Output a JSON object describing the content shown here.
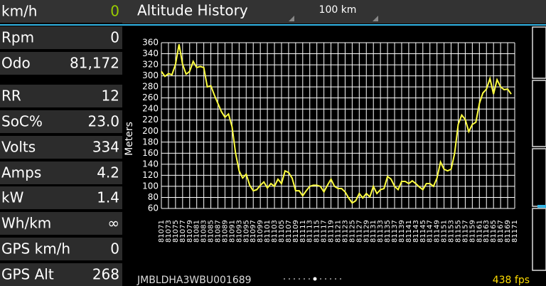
{
  "header": {
    "title": "Altitude History",
    "range": "100 km"
  },
  "gauges": [
    {
      "label": "km/h",
      "value": "0"
    },
    {
      "label": "Rpm",
      "value": "0"
    },
    {
      "label": "Odo",
      "value": "81,172"
    },
    {
      "label": "RR",
      "value": "12"
    },
    {
      "label": "SoC%",
      "value": "23.0"
    },
    {
      "label": "Volts",
      "value": "334"
    },
    {
      "label": "Amps",
      "value": "4.2"
    },
    {
      "label": "kW",
      "value": "1.4"
    },
    {
      "label": "Wh/km",
      "value": "∞"
    },
    {
      "label": "GPS km/h",
      "value": "0"
    },
    {
      "label": "GPS Alt",
      "value": "268"
    }
  ],
  "footer": {
    "vin": "JMBLDHA3WBU001689",
    "fps": "438 fps"
  },
  "chart_data": {
    "type": "line",
    "y_label": "Meters",
    "grid": true,
    "x": [
      81071,
      81072,
      81073,
      81074,
      81075,
      81076,
      81077,
      81078,
      81079,
      81080,
      81081,
      81082,
      81083,
      81084,
      81085,
      81086,
      81087,
      81088,
      81089,
      81090,
      81091,
      81092,
      81093,
      81094,
      81095,
      81096,
      81097,
      81098,
      81099,
      81100,
      81101,
      81102,
      81103,
      81104,
      81105,
      81106,
      81107,
      81108,
      81109,
      81110,
      81111,
      81112,
      81113,
      81114,
      81115,
      81116,
      81117,
      81118,
      81119,
      81120,
      81121,
      81122,
      81123,
      81124,
      81125,
      81126,
      81127,
      81128,
      81129,
      81130,
      81131,
      81132,
      81133,
      81134,
      81135,
      81136,
      81137,
      81138,
      81139,
      81140,
      81141,
      81142,
      81143,
      81144,
      81145,
      81146,
      81147,
      81148,
      81149,
      81150,
      81151,
      81152,
      81153,
      81154,
      81155,
      81156,
      81157,
      81158,
      81159,
      81160,
      81161,
      81162,
      81163,
      81164,
      81165,
      81166,
      81167,
      81168,
      81169,
      81170
    ],
    "series": [
      {
        "name": "Altitude",
        "color": "#ffff40",
        "values": [
          308,
          299,
          304,
          302,
          321,
          357,
          321,
          303,
          308,
          326,
          315,
          317,
          315,
          280,
          282,
          265,
          250,
          235,
          225,
          231,
          208,
          160,
          128,
          115,
          122,
          102,
          92,
          94,
          102,
          108,
          97,
          105,
          100,
          113,
          105,
          128,
          125,
          115,
          92,
          92,
          83,
          92,
          100,
          102,
          102,
          100,
          90,
          102,
          113,
          100,
          96,
          96,
          90,
          79,
          70,
          74,
          87,
          79,
          87,
          81,
          100,
          87,
          94,
          96,
          118,
          113,
          100,
          94,
          109,
          109,
          105,
          110,
          105,
          99,
          94,
          105,
          105,
          100,
          115,
          144,
          131,
          128,
          131,
          160,
          212,
          229,
          221,
          199,
          212,
          216,
          250,
          269,
          276,
          295,
          267,
          293,
          280,
          275,
          276,
          267
        ]
      }
    ],
    "xlim": [
      81071,
      81171
    ],
    "xticks": [
      81071,
      81073,
      81075,
      81077,
      81079,
      81081,
      81083,
      81085,
      81087,
      81089,
      81091,
      81093,
      81095,
      81097,
      81099,
      81101,
      81103,
      81105,
      81107,
      81109,
      81111,
      81113,
      81115,
      81117,
      81119,
      81121,
      81123,
      81125,
      81127,
      81129,
      81131,
      81133,
      81135,
      81137,
      81139,
      81141,
      81143,
      81145,
      81147,
      81149,
      81151,
      81153,
      81155,
      81157,
      81159,
      81161,
      81163,
      81165,
      81167,
      81169,
      81171
    ],
    "ylim": [
      60,
      360
    ],
    "yticks": [
      60,
      80,
      100,
      120,
      140,
      160,
      180,
      200,
      220,
      240,
      260,
      280,
      300,
      320,
      340,
      360
    ]
  }
}
